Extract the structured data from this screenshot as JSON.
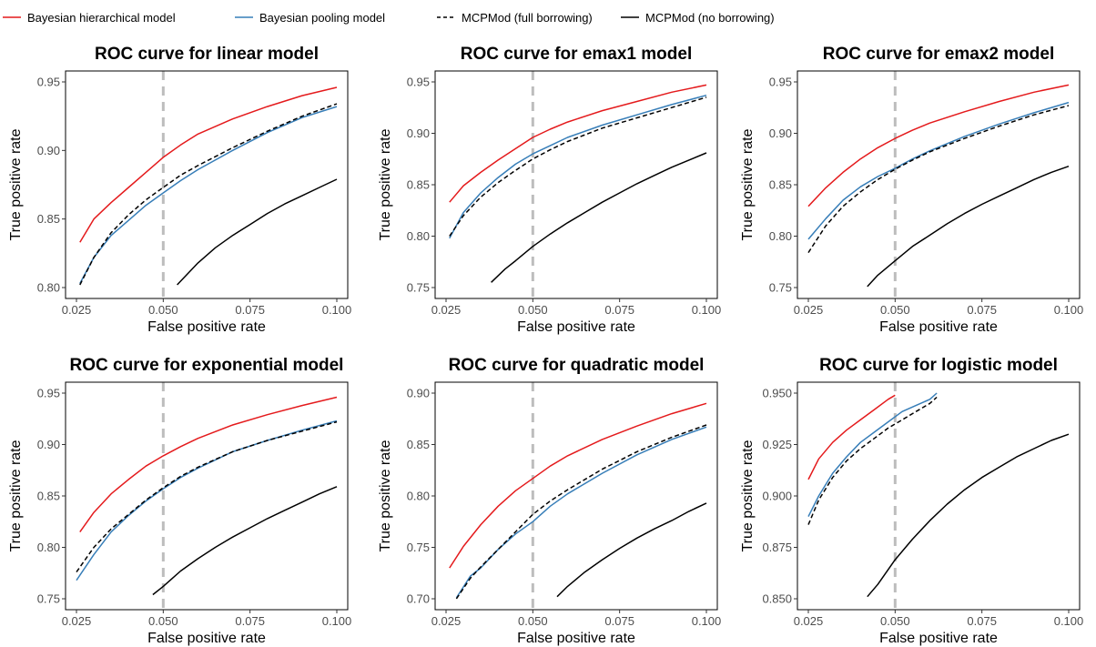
{
  "legend": [
    {
      "label": "Bayesian hierarchical model",
      "color": "#e41a1c",
      "dash": "solid"
    },
    {
      "label": "Bayesian pooling model",
      "color": "#377eb8",
      "dash": "solid"
    },
    {
      "label": "MCPMod (full borrowing)",
      "color": "#000000",
      "dash": "dashed"
    },
    {
      "label": "MCPMod (no borrowing)",
      "color": "#000000",
      "dash": "solid"
    }
  ],
  "reference_line": {
    "x": 0.05,
    "color": "#bdbdbd",
    "style": "dashed"
  },
  "chart_data": [
    {
      "type": "line",
      "title": "ROC curve for linear model",
      "xlabel": "False positive rate",
      "ylabel": "True positive rate",
      "xlim": [
        0.025,
        0.1
      ],
      "ylim": [
        0.8,
        0.95
      ],
      "xticks": [
        "0.025",
        "0.050",
        "0.075",
        "0.100"
      ],
      "yticks": [
        "0.80",
        "0.85",
        "0.90",
        "0.95"
      ],
      "grid": false,
      "series": [
        {
          "name": "Bayesian hierarchical model",
          "x": [
            0.026,
            0.03,
            0.035,
            0.04,
            0.045,
            0.05,
            0.055,
            0.06,
            0.07,
            0.08,
            0.09,
            0.1
          ],
          "y": [
            0.833,
            0.85,
            0.862,
            0.873,
            0.884,
            0.895,
            0.904,
            0.912,
            0.923,
            0.932,
            0.94,
            0.946
          ]
        },
        {
          "name": "Bayesian pooling model",
          "x": [
            0.026,
            0.03,
            0.035,
            0.04,
            0.045,
            0.05,
            0.055,
            0.06,
            0.07,
            0.08,
            0.09,
            0.1
          ],
          "y": [
            0.803,
            0.822,
            0.838,
            0.849,
            0.86,
            0.869,
            0.878,
            0.886,
            0.9,
            0.913,
            0.924,
            0.932
          ]
        },
        {
          "name": "MCPMod (full borrowing)",
          "x": [
            0.026,
            0.03,
            0.035,
            0.04,
            0.045,
            0.05,
            0.055,
            0.06,
            0.07,
            0.08,
            0.09,
            0.1
          ],
          "y": [
            0.802,
            0.822,
            0.84,
            0.853,
            0.864,
            0.873,
            0.882,
            0.889,
            0.902,
            0.914,
            0.925,
            0.934
          ]
        },
        {
          "name": "MCPMod (no borrowing)",
          "x": [
            0.054,
            0.06,
            0.065,
            0.07,
            0.075,
            0.08,
            0.085,
            0.09,
            0.095,
            0.1
          ],
          "y": [
            0.802,
            0.818,
            0.829,
            0.838,
            0.846,
            0.854,
            0.861,
            0.867,
            0.873,
            0.879
          ]
        }
      ]
    },
    {
      "type": "line",
      "title": "ROC curve for emax1 model",
      "xlabel": "False positive rate",
      "ylabel": "True positive rate",
      "xlim": [
        0.025,
        0.1
      ],
      "ylim": [
        0.75,
        0.95
      ],
      "xticks": [
        "0.025",
        "0.050",
        "0.075",
        "0.100"
      ],
      "yticks": [
        "0.75",
        "0.80",
        "0.85",
        "0.90",
        "0.95"
      ],
      "grid": false,
      "series": [
        {
          "name": "Bayesian hierarchical model",
          "x": [
            0.026,
            0.03,
            0.035,
            0.04,
            0.045,
            0.05,
            0.055,
            0.06,
            0.07,
            0.08,
            0.09,
            0.1
          ],
          "y": [
            0.833,
            0.849,
            0.862,
            0.874,
            0.885,
            0.896,
            0.904,
            0.911,
            0.922,
            0.931,
            0.94,
            0.947
          ]
        },
        {
          "name": "Bayesian pooling model",
          "x": [
            0.026,
            0.03,
            0.035,
            0.04,
            0.045,
            0.05,
            0.055,
            0.06,
            0.07,
            0.08,
            0.09,
            0.1
          ],
          "y": [
            0.798,
            0.823,
            0.842,
            0.857,
            0.87,
            0.88,
            0.888,
            0.896,
            0.908,
            0.918,
            0.928,
            0.937
          ]
        },
        {
          "name": "MCPMod (full borrowing)",
          "x": [
            0.026,
            0.03,
            0.035,
            0.04,
            0.045,
            0.05,
            0.055,
            0.06,
            0.07,
            0.08,
            0.09,
            0.1
          ],
          "y": [
            0.8,
            0.82,
            0.838,
            0.852,
            0.864,
            0.875,
            0.884,
            0.892,
            0.905,
            0.915,
            0.925,
            0.935
          ]
        },
        {
          "name": "MCPMod (no borrowing)",
          "x": [
            0.038,
            0.042,
            0.045,
            0.05,
            0.055,
            0.06,
            0.065,
            0.07,
            0.075,
            0.08,
            0.085,
            0.09,
            0.095,
            0.1
          ],
          "y": [
            0.755,
            0.768,
            0.776,
            0.79,
            0.802,
            0.813,
            0.823,
            0.833,
            0.842,
            0.851,
            0.859,
            0.867,
            0.874,
            0.881
          ]
        }
      ]
    },
    {
      "type": "line",
      "title": "ROC curve for emax2 model",
      "xlabel": "False positive rate",
      "ylabel": "True positive rate",
      "xlim": [
        0.025,
        0.1
      ],
      "ylim": [
        0.75,
        0.95
      ],
      "xticks": [
        "0.025",
        "0.050",
        "0.075",
        "0.100"
      ],
      "yticks": [
        "0.75",
        "0.80",
        "0.85",
        "0.90",
        "0.95"
      ],
      "grid": false,
      "series": [
        {
          "name": "Bayesian hierarchical model",
          "x": [
            0.025,
            0.03,
            0.035,
            0.04,
            0.045,
            0.05,
            0.055,
            0.06,
            0.07,
            0.08,
            0.09,
            0.1
          ],
          "y": [
            0.829,
            0.847,
            0.862,
            0.875,
            0.886,
            0.895,
            0.903,
            0.91,
            0.921,
            0.931,
            0.94,
            0.947
          ]
        },
        {
          "name": "Bayesian pooling model",
          "x": [
            0.025,
            0.03,
            0.035,
            0.04,
            0.045,
            0.05,
            0.055,
            0.06,
            0.07,
            0.08,
            0.09,
            0.1
          ],
          "y": [
            0.797,
            0.817,
            0.835,
            0.848,
            0.858,
            0.866,
            0.875,
            0.883,
            0.897,
            0.909,
            0.92,
            0.93
          ]
        },
        {
          "name": "MCPMod (full borrowing)",
          "x": [
            0.025,
            0.03,
            0.035,
            0.04,
            0.045,
            0.05,
            0.055,
            0.06,
            0.07,
            0.08,
            0.09,
            0.1
          ],
          "y": [
            0.784,
            0.81,
            0.829,
            0.843,
            0.855,
            0.865,
            0.874,
            0.882,
            0.895,
            0.907,
            0.918,
            0.927
          ]
        },
        {
          "name": "MCPMod (no borrowing)",
          "x": [
            0.042,
            0.045,
            0.05,
            0.055,
            0.06,
            0.065,
            0.07,
            0.075,
            0.08,
            0.085,
            0.09,
            0.095,
            0.1
          ],
          "y": [
            0.751,
            0.762,
            0.776,
            0.79,
            0.801,
            0.812,
            0.822,
            0.831,
            0.839,
            0.847,
            0.855,
            0.862,
            0.868
          ]
        }
      ]
    },
    {
      "type": "line",
      "title": "ROC curve for exponential model",
      "xlabel": "False positive rate",
      "ylabel": "True positive rate",
      "xlim": [
        0.025,
        0.1
      ],
      "ylim": [
        0.75,
        0.95
      ],
      "xticks": [
        "0.025",
        "0.050",
        "0.075",
        "0.100"
      ],
      "yticks": [
        "0.75",
        "0.80",
        "0.85",
        "0.90",
        "0.95"
      ],
      "grid": false,
      "series": [
        {
          "name": "Bayesian hierarchical model",
          "x": [
            0.026,
            0.03,
            0.035,
            0.04,
            0.045,
            0.05,
            0.055,
            0.06,
            0.07,
            0.08,
            0.09,
            0.1
          ],
          "y": [
            0.815,
            0.834,
            0.852,
            0.866,
            0.879,
            0.889,
            0.898,
            0.906,
            0.919,
            0.929,
            0.938,
            0.946
          ]
        },
        {
          "name": "Bayesian pooling model",
          "x": [
            0.025,
            0.03,
            0.035,
            0.04,
            0.045,
            0.05,
            0.055,
            0.06,
            0.07,
            0.08,
            0.09,
            0.1
          ],
          "y": [
            0.768,
            0.793,
            0.815,
            0.831,
            0.845,
            0.857,
            0.868,
            0.877,
            0.893,
            0.904,
            0.914,
            0.923
          ]
        },
        {
          "name": "MCPMod (full borrowing)",
          "x": [
            0.025,
            0.03,
            0.035,
            0.04,
            0.045,
            0.05,
            0.055,
            0.06,
            0.07,
            0.08,
            0.09,
            0.1
          ],
          "y": [
            0.776,
            0.8,
            0.818,
            0.832,
            0.846,
            0.858,
            0.869,
            0.878,
            0.893,
            0.904,
            0.913,
            0.922
          ]
        },
        {
          "name": "MCPMod (no borrowing)",
          "x": [
            0.047,
            0.05,
            0.055,
            0.06,
            0.065,
            0.07,
            0.075,
            0.08,
            0.085,
            0.09,
            0.095,
            0.1
          ],
          "y": [
            0.754,
            0.762,
            0.777,
            0.789,
            0.8,
            0.81,
            0.819,
            0.828,
            0.836,
            0.844,
            0.852,
            0.859
          ]
        }
      ]
    },
    {
      "type": "line",
      "title": "ROC curve for quadratic model",
      "xlabel": "False positive rate",
      "ylabel": "True positive rate",
      "xlim": [
        0.025,
        0.1
      ],
      "ylim": [
        0.7,
        0.9
      ],
      "xticks": [
        "0.025",
        "0.050",
        "0.075",
        "0.100"
      ],
      "yticks": [
        "0.70",
        "0.75",
        "0.80",
        "0.85",
        "0.90"
      ],
      "grid": false,
      "series": [
        {
          "name": "Bayesian hierarchical model",
          "x": [
            0.026,
            0.03,
            0.035,
            0.04,
            0.045,
            0.05,
            0.055,
            0.06,
            0.07,
            0.08,
            0.09,
            0.1
          ],
          "y": [
            0.73,
            0.751,
            0.772,
            0.79,
            0.805,
            0.817,
            0.829,
            0.839,
            0.855,
            0.868,
            0.88,
            0.89
          ]
        },
        {
          "name": "Bayesian pooling model",
          "x": [
            0.028,
            0.032,
            0.035,
            0.04,
            0.045,
            0.05,
            0.055,
            0.06,
            0.07,
            0.08,
            0.09,
            0.1
          ],
          "y": [
            0.701,
            0.722,
            0.73,
            0.748,
            0.763,
            0.775,
            0.79,
            0.802,
            0.822,
            0.84,
            0.855,
            0.867
          ]
        },
        {
          "name": "MCPMod (full borrowing)",
          "x": [
            0.028,
            0.032,
            0.035,
            0.04,
            0.045,
            0.05,
            0.055,
            0.06,
            0.07,
            0.08,
            0.09,
            0.1
          ],
          "y": [
            0.7,
            0.72,
            0.731,
            0.748,
            0.765,
            0.782,
            0.795,
            0.806,
            0.826,
            0.843,
            0.857,
            0.869
          ]
        },
        {
          "name": "MCPMod (no borrowing)",
          "x": [
            0.057,
            0.06,
            0.065,
            0.07,
            0.075,
            0.08,
            0.085,
            0.09,
            0.095,
            0.1
          ],
          "y": [
            0.702,
            0.712,
            0.726,
            0.738,
            0.749,
            0.759,
            0.768,
            0.776,
            0.785,
            0.793
          ]
        }
      ]
    },
    {
      "type": "line",
      "title": "ROC curve for logistic model",
      "xlabel": "False positive rate",
      "ylabel": "True positive rate",
      "xlim": [
        0.025,
        0.1
      ],
      "ylim": [
        0.85,
        0.95
      ],
      "xticks": [
        "0.025",
        "0.050",
        "0.075",
        "0.100"
      ],
      "yticks": [
        "0.850",
        "0.875",
        "0.900",
        "0.925",
        "0.950"
      ],
      "grid": false,
      "series": [
        {
          "name": "Bayesian hierarchical model",
          "x": [
            0.025,
            0.028,
            0.032,
            0.036,
            0.04,
            0.044,
            0.048,
            0.05
          ],
          "y": [
            0.908,
            0.918,
            0.926,
            0.932,
            0.937,
            0.942,
            0.947,
            0.949
          ]
        },
        {
          "name": "Bayesian pooling model",
          "x": [
            0.025,
            0.028,
            0.032,
            0.036,
            0.04,
            0.044,
            0.048,
            0.052,
            0.056,
            0.06,
            0.062
          ],
          "y": [
            0.89,
            0.9,
            0.911,
            0.919,
            0.926,
            0.931,
            0.936,
            0.941,
            0.944,
            0.947,
            0.95
          ]
        },
        {
          "name": "MCPMod (full borrowing)",
          "x": [
            0.025,
            0.028,
            0.032,
            0.036,
            0.04,
            0.044,
            0.048,
            0.052,
            0.056,
            0.06,
            0.062
          ],
          "y": [
            0.886,
            0.898,
            0.909,
            0.917,
            0.923,
            0.928,
            0.933,
            0.937,
            0.941,
            0.945,
            0.948
          ]
        },
        {
          "name": "MCPMod (no borrowing)",
          "x": [
            0.042,
            0.045,
            0.05,
            0.055,
            0.06,
            0.065,
            0.07,
            0.075,
            0.08,
            0.085,
            0.09,
            0.095,
            0.1
          ],
          "y": [
            0.851,
            0.857,
            0.869,
            0.879,
            0.888,
            0.896,
            0.903,
            0.909,
            0.914,
            0.919,
            0.923,
            0.927,
            0.93
          ]
        }
      ]
    }
  ]
}
